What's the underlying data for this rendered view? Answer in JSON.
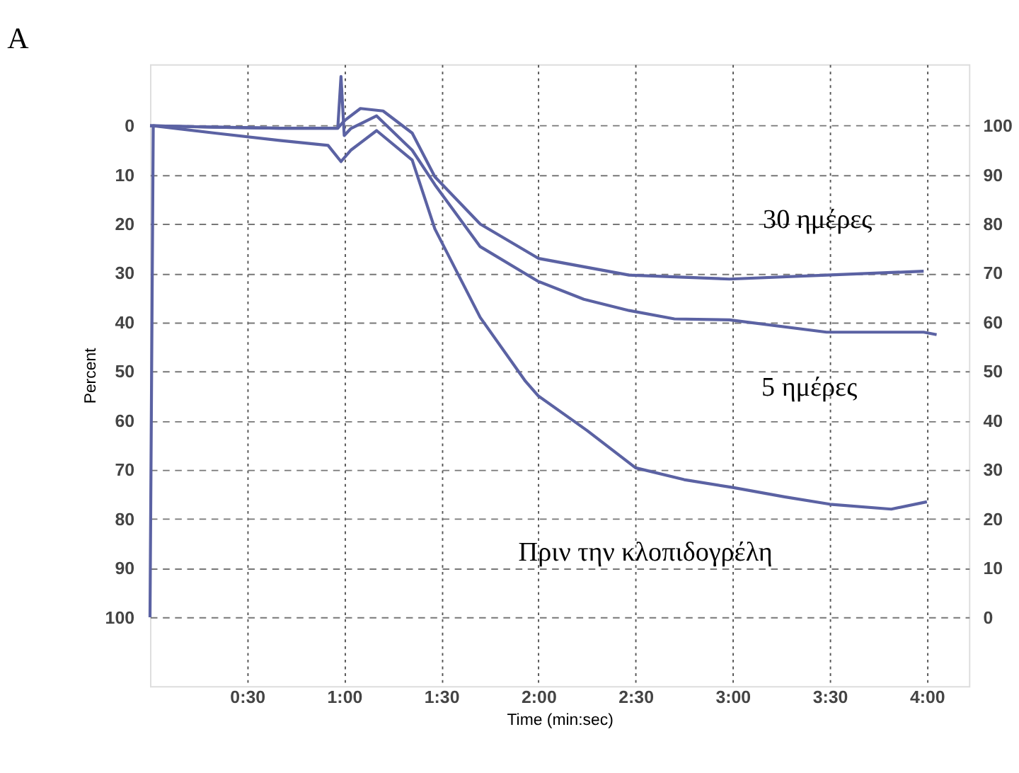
{
  "chart_data": {
    "type": "line",
    "title": "A",
    "xlabel": "Time (min:sec)",
    "ylabel": "Percent",
    "xlim": [
      0,
      253
    ],
    "ylim": [
      114,
      -12.5
    ],
    "y2lim": [
      -14,
      112.5
    ],
    "xticks": [
      {
        "value": 30,
        "label": "0:30"
      },
      {
        "value": 60,
        "label": "1:00"
      },
      {
        "value": 90,
        "label": "1:30"
      },
      {
        "value": 120,
        "label": "2:00"
      },
      {
        "value": 150,
        "label": "2:30"
      },
      {
        "value": 180,
        "label": "3:00"
      },
      {
        "value": 210,
        "label": "3:30"
      },
      {
        "value": 240,
        "label": "4:00"
      }
    ],
    "yticks": [
      0,
      10,
      20,
      30,
      40,
      50,
      60,
      70,
      80,
      90,
      100
    ],
    "y2ticks": [
      0,
      10,
      20,
      30,
      40,
      50,
      60,
      70,
      80,
      90,
      100
    ],
    "grid": true,
    "line_style": "solid",
    "marker": "none",
    "series": [
      {
        "name": "30 ημέρες",
        "color": "#5b62a3",
        "x": [
          0,
          20,
          40,
          58,
          60,
          65,
          72,
          81,
          88,
          102,
          120,
          148,
          179,
          209,
          239
        ],
        "values": [
          0,
          0.3,
          0.5,
          0.5,
          -1,
          -3.5,
          -3,
          1.5,
          10.4,
          20,
          27,
          30.4,
          31.2,
          30.4,
          29.6
        ]
      },
      {
        "name": "5 ημέρες",
        "color": "#5b62a3",
        "x": [
          0,
          20,
          40,
          58,
          59,
          60,
          62,
          70,
          81,
          88,
          102,
          120,
          134,
          148,
          162,
          179,
          209,
          239,
          243
        ],
        "values": [
          0,
          0.3,
          0.5,
          0.5,
          -10,
          2,
          0.6,
          -2,
          5,
          12,
          24.6,
          31.7,
          35.3,
          37.6,
          39.3,
          39.5,
          42,
          42,
          42.5
        ]
      },
      {
        "name": "Πριν την κλοπιδογρέλη",
        "color": "#5b62a3",
        "x": [
          0,
          1,
          20,
          40,
          55,
          59,
          62,
          70,
          81,
          88,
          102,
          116,
          120,
          135,
          150,
          165,
          180,
          196,
          210,
          229,
          240
        ],
        "values": [
          100,
          0,
          1.5,
          3,
          4,
          7.3,
          5,
          1,
          7,
          21,
          39,
          52,
          55,
          62,
          69.6,
          72,
          73.6,
          75.5,
          77,
          78,
          76.5
        ]
      }
    ]
  }
}
